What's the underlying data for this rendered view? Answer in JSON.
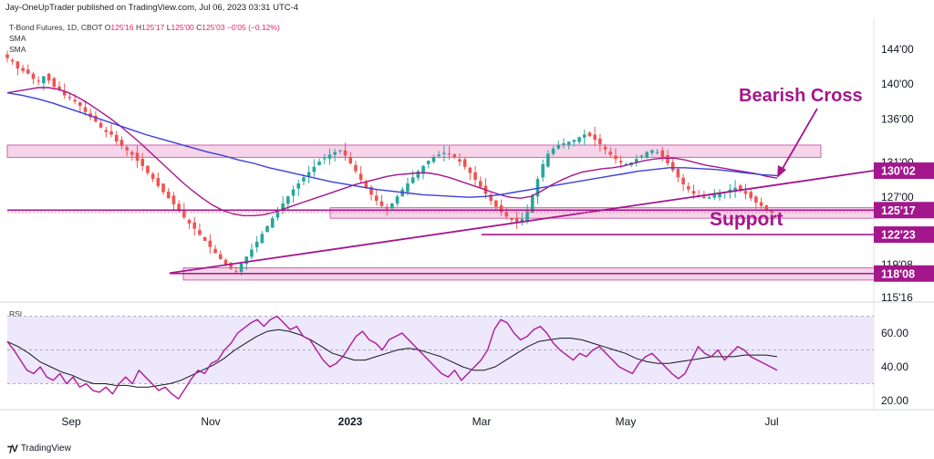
{
  "header": {
    "publisher": "Jay-OneUpTrader published on TradingView.com, Jul 06, 2023 03:31 UTC-4",
    "symbol": "T-Bond Futures, 1D, CBOT",
    "ohlc": {
      "O": "125'16",
      "H": "125'17",
      "L": "125'00",
      "C": "125'03",
      "change": "−0'05 (−0.12%)"
    },
    "indicator1": "SMA",
    "indicator2": "SMA",
    "rsi_label": "RSI"
  },
  "footer": {
    "brand": "TradingView"
  },
  "colors": {
    "bull": "#26a69a",
    "bear": "#ef5350",
    "sma_fast": "#a4168c",
    "sma_slow": "#3d3fd8",
    "annotation": "#a4168c",
    "zone_fill": "#f3c6e3",
    "rsi_line": "#b0189a",
    "rsi_ma": "#131722",
    "rsi_band": "#ede8fb"
  },
  "chart_data": [
    {
      "type": "candlestick",
      "title": "T-Bond Futures, 1D, CBOT",
      "price_axis_ticks": [
        "144'00",
        "140'00",
        "136'00",
        "130'02",
        "127'00",
        "125'17",
        "122'23",
        "118'08",
        "115'16"
      ],
      "price_axis_partial_labels": [
        "131'00",
        "119'08"
      ],
      "time_axis_ticks": [
        "Sep",
        "Nov",
        "2023",
        "Mar",
        "May",
        "Jul"
      ],
      "price_badges": [
        {
          "label": "130'02",
          "price": 130.06
        },
        {
          "label": "125'17",
          "price": 125.53
        },
        {
          "label": "122'23",
          "price": 122.72
        },
        {
          "label": "118'08",
          "price": 118.25
        }
      ],
      "annotations": [
        {
          "text": "Bearish Cross",
          "points_to": "SMA crossover near Jul"
        },
        {
          "text": "Support",
          "near_price": 125.3
        }
      ],
      "zones": [
        {
          "from": 131.6,
          "to": 133.0,
          "start": "Jul 2022",
          "end": "Jul 2023"
        },
        {
          "from": 124.6,
          "to": 125.8,
          "start": "Dec 2022",
          "end": "Jul 2023"
        },
        {
          "from": 117.5,
          "to": 118.9,
          "start": "Oct 2022",
          "end": "Jul 2023"
        }
      ],
      "trendlines": [
        {
          "name": "rising trendline",
          "from": {
            "date": "Oct 2022",
            "price": 118.3
          },
          "to": {
            "date": "Jul 2023",
            "price": 130.06
          }
        },
        {
          "name": "support line",
          "from": {
            "date": "Jul 2022",
            "price": 125.53
          },
          "to": {
            "date": "Jul 2023",
            "price": 125.53
          }
        },
        {
          "name": "lower support line",
          "from": {
            "date": "Feb 2023",
            "price": 122.72
          },
          "to": {
            "date": "Jul 2023",
            "price": 122.72
          }
        }
      ],
      "series": [
        {
          "name": "T-Bond Futures",
          "kind": "price",
          "values": [
            143.0,
            142.6,
            141.8,
            141.5,
            141.2,
            140.6,
            140.3,
            140.9,
            140.4,
            139.7,
            139.4,
            138.7,
            138.4,
            138.0,
            137.5,
            136.8,
            136.2,
            135.7,
            135.0,
            134.5,
            134.2,
            133.4,
            132.9,
            132.4,
            131.9,
            131.2,
            130.6,
            129.8,
            129.1,
            128.3,
            127.6,
            126.9,
            126.2,
            125.4,
            124.7,
            124.0,
            123.4,
            122.7,
            122.0,
            121.3,
            120.6,
            119.9,
            119.3,
            118.8,
            118.5,
            119.4,
            120.2,
            121.0,
            121.9,
            122.8,
            123.7,
            124.6,
            125.5,
            126.3,
            127.1,
            127.9,
            128.6,
            129.3,
            129.9,
            130.5,
            131.1,
            131.5,
            131.9,
            132.2,
            132.4,
            131.8,
            130.9,
            130.0,
            129.0,
            128.1,
            127.3,
            126.6,
            126.0,
            125.7,
            126.3,
            127.1,
            127.9,
            128.6,
            129.3,
            130.0,
            130.6,
            131.2,
            131.6,
            131.9,
            132.1,
            132.0,
            131.6,
            131.1,
            130.5,
            129.8,
            129.0,
            128.2,
            127.4,
            126.6,
            125.9,
            125.3,
            124.8,
            124.4,
            124.2,
            124.5,
            125.4,
            127.2,
            129.1,
            130.8,
            132.0,
            132.6,
            133.0,
            133.2,
            133.4,
            133.6,
            133.9,
            134.2,
            134.0,
            133.6,
            133.1,
            132.5,
            131.9,
            131.4,
            131.0,
            130.8,
            131.0,
            131.4,
            131.8,
            132.2,
            132.4,
            132.2,
            131.6,
            130.9,
            130.1,
            129.3,
            128.5,
            127.9,
            127.4,
            127.1,
            126.9,
            127.0,
            127.3,
            127.5,
            127.6,
            127.9,
            128.1,
            127.8,
            127.4,
            126.9,
            126.4,
            126.0,
            125.6,
            125.2
          ]
        },
        {
          "name": "SMA",
          "kind": "moving average (fast)",
          "values": [
            139.0,
            139.2,
            139.4,
            139.6,
            139.6,
            139.4,
            139.0,
            138.4,
            137.7,
            136.9,
            136.1,
            135.2,
            134.2,
            133.2,
            132.1,
            131.0,
            129.9,
            128.8,
            127.8,
            126.9,
            126.1,
            125.5,
            125.1,
            124.9,
            124.9,
            125.0,
            125.3,
            125.7,
            126.1,
            126.5,
            126.9,
            127.3,
            127.7,
            128.1,
            128.5,
            128.8,
            129.1,
            129.4,
            129.6,
            129.7,
            129.8,
            129.8,
            129.6,
            129.3,
            128.9,
            128.5,
            128.1,
            127.7,
            127.3,
            127.0,
            126.9,
            127.1,
            127.7,
            128.4,
            129.0,
            129.5,
            129.9,
            130.1,
            130.3,
            130.4,
            130.6,
            130.9,
            131.2,
            131.4,
            131.5,
            131.5,
            131.3,
            131.0,
            130.7,
            130.5,
            130.3,
            130.1,
            129.9,
            129.7,
            129.4,
            129.2
          ]
        },
        {
          "name": "SMA",
          "kind": "moving average (slow)",
          "values": [
            139.0,
            138.7,
            138.3,
            137.8,
            137.2,
            136.6,
            136.0,
            135.4,
            134.8,
            134.2,
            133.7,
            133.2,
            132.7,
            132.2,
            131.8,
            131.3,
            130.9,
            130.4,
            130.0,
            129.6,
            129.2,
            128.8,
            128.5,
            128.2,
            127.9,
            127.7,
            127.5,
            127.3,
            127.2,
            127.1,
            127.0,
            127.1,
            127.3,
            127.6,
            127.9,
            128.2,
            128.5,
            128.8,
            129.1,
            129.4,
            129.7,
            130.0,
            130.2,
            130.4,
            130.4,
            130.3,
            130.2,
            130.0,
            129.8,
            129.6,
            129.5
          ]
        }
      ]
    },
    {
      "type": "line",
      "title": "RSI",
      "y_ticks": [
        "60.00",
        "40.00",
        "20.00"
      ],
      "band": [
        30,
        70
      ],
      "series": [
        {
          "name": "RSI",
          "values": [
            55,
            50,
            44,
            38,
            36,
            40,
            34,
            32,
            36,
            30,
            34,
            28,
            30,
            26,
            25,
            28,
            24,
            30,
            34,
            30,
            38,
            34,
            30,
            26,
            28,
            24,
            21,
            27,
            33,
            38,
            36,
            42,
            44,
            50,
            54,
            60,
            63,
            66,
            68,
            64,
            68,
            70,
            66,
            62,
            64,
            58,
            56,
            50,
            44,
            40,
            42,
            46,
            52,
            58,
            61,
            56,
            54,
            50,
            56,
            58,
            60,
            56,
            52,
            48,
            44,
            40,
            36,
            34,
            38,
            32,
            36,
            40,
            44,
            50,
            62,
            68,
            66,
            60,
            56,
            58,
            62,
            64,
            60,
            54,
            50,
            47,
            44,
            48,
            46,
            50,
            52,
            48,
            44,
            40,
            38,
            36,
            42,
            46,
            48,
            44,
            40,
            36,
            33,
            36,
            44,
            52,
            48,
            46,
            50,
            44,
            48,
            52,
            50,
            46,
            44,
            42,
            40,
            38
          ]
        },
        {
          "name": "RSI-based MA",
          "values": [
            55,
            52,
            48,
            43,
            40,
            37,
            35,
            32,
            30,
            30,
            29,
            29,
            28,
            28,
            29,
            30,
            32,
            35,
            38,
            41,
            45,
            50,
            54,
            58,
            61,
            62,
            61,
            59,
            56,
            52,
            48,
            46,
            44,
            44,
            46,
            48,
            50,
            51,
            50,
            48,
            46,
            43,
            40,
            38,
            38,
            40,
            44,
            48,
            52,
            55,
            56,
            57,
            57,
            56,
            54,
            52,
            50,
            48,
            45,
            43,
            42,
            42,
            43,
            44,
            45,
            46,
            46,
            46,
            47,
            47,
            47,
            46
          ]
        }
      ]
    }
  ]
}
